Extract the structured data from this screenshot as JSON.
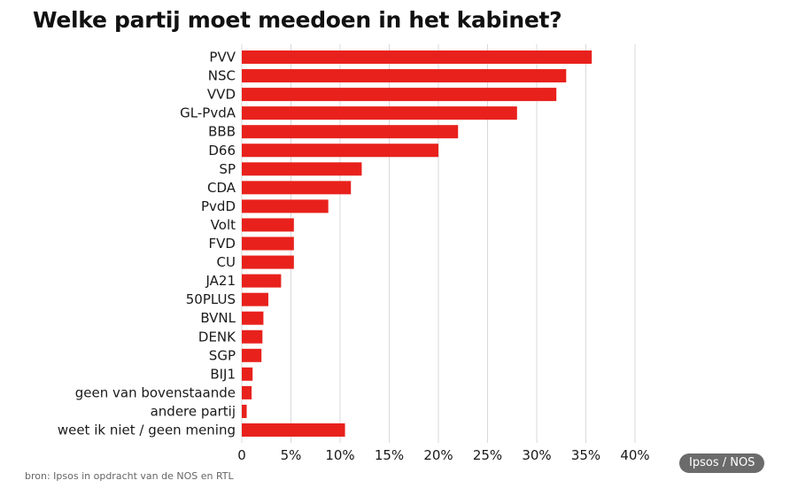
{
  "chart_data": {
    "type": "bar",
    "orientation": "horizontal",
    "title": "Welke partij moet meedoen in het kabinet?",
    "categories": [
      "PVV",
      "NSC",
      "VVD",
      "GL-PvdA",
      "BBB",
      "D66",
      "SP",
      "CDA",
      "PvdD",
      "Volt",
      "FVD",
      "CU",
      "JA21",
      "50PLUS",
      "BVNL",
      "DENK",
      "SGP",
      "BIJ1",
      "geen van bovenstaande",
      "andere partij",
      "weet ik niet / geen mening"
    ],
    "values": [
      35.6,
      33,
      32,
      28,
      22,
      20,
      12.2,
      11.1,
      8.8,
      5.3,
      5.3,
      5.3,
      4,
      2.7,
      2.2,
      2.1,
      2,
      1.1,
      1,
      0.5,
      10.5
    ],
    "xlim": [
      0,
      40
    ],
    "xticks": [
      "0",
      "5%",
      "10%",
      "15%",
      "20%",
      "25%",
      "30%",
      "35%",
      "40%"
    ],
    "grid": true,
    "bar_color": "#e8211c",
    "grid_color": "#d9d9d9"
  },
  "source": "bron: Ipsos in opdracht van de NOS en RTL",
  "badge": "Ipsos / NOS"
}
